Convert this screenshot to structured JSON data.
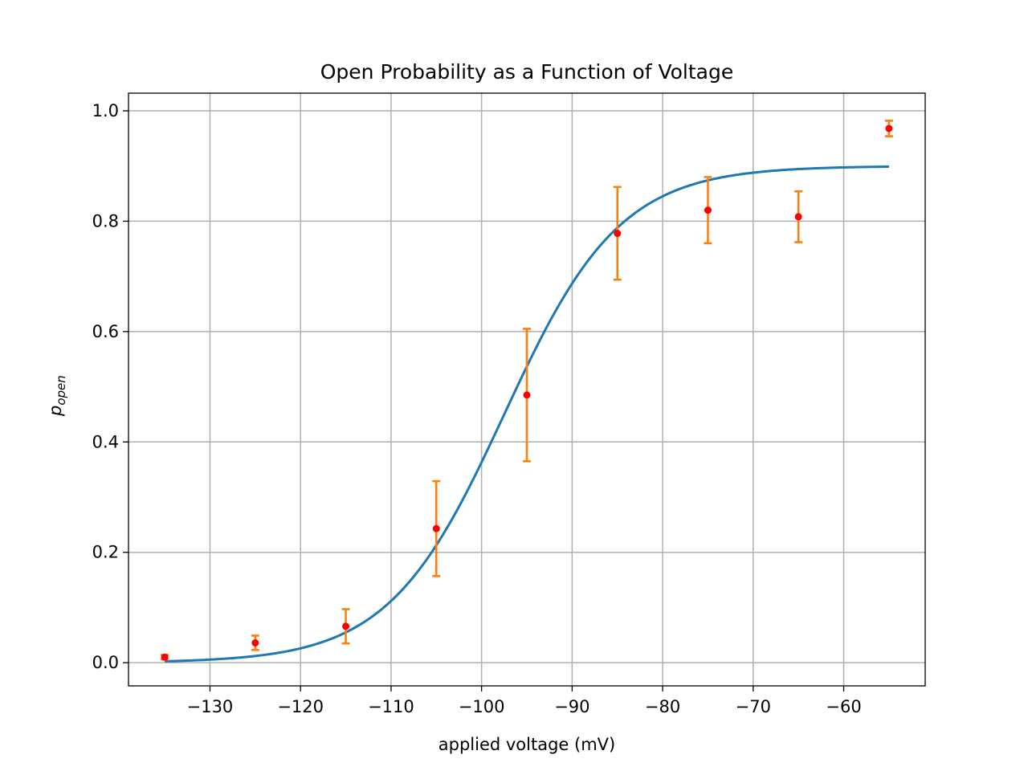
{
  "chart_data": {
    "type": "scatter",
    "title": "Open Probability as a Function of Voltage",
    "xlabel": "applied voltage (mV)",
    "ylabel_base": "p",
    "ylabel_sub": "open",
    "xlim": [
      -139,
      -51
    ],
    "ylim": [
      -0.042,
      1.032
    ],
    "x_ticks": [
      -130,
      -120,
      -110,
      -100,
      -90,
      -80,
      -70,
      -60
    ],
    "x_tick_labels": [
      "−130",
      "−120",
      "−110",
      "−100",
      "−90",
      "−80",
      "−70",
      "−60"
    ],
    "y_ticks": [
      0.0,
      0.2,
      0.4,
      0.6,
      0.8,
      1.0
    ],
    "y_tick_labels": [
      "0.0",
      "0.2",
      "0.4",
      "0.6",
      "0.8",
      "1.0"
    ],
    "grid": true,
    "colors": {
      "fit_line": "#1f77b4",
      "error_bars": "#ff7f0e",
      "markers": "#ff0000",
      "grid": "#b0b0b0"
    },
    "measurements": {
      "x": [
        -135,
        -125,
        -115,
        -105,
        -95,
        -85,
        -75,
        -65,
        -55
      ],
      "y": [
        0.01,
        0.036,
        0.066,
        0.243,
        0.485,
        0.778,
        0.82,
        0.808,
        0.968
      ],
      "yerr": [
        0.004,
        0.013,
        0.031,
        0.086,
        0.12,
        0.084,
        0.06,
        0.046,
        0.014
      ]
    },
    "fit_curve": {
      "model": "boltzmann",
      "x_range": [
        -135,
        -55
      ],
      "A": 0.9,
      "V_half": -97.5,
      "slope": 6.4
    }
  }
}
